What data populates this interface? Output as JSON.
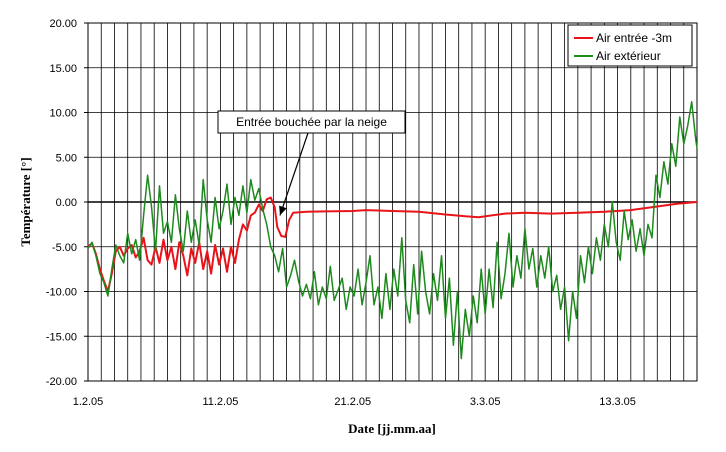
{
  "chart_data": {
    "type": "line",
    "xlabel": "Date [jj.mm.aa]",
    "ylabel": "Température [°]",
    "x_unit": "day index from 1.2.05",
    "x_range_days": [
      0,
      46
    ],
    "ylim": [
      -20,
      20
    ],
    "y_ticks": [
      "20.00",
      "15.00",
      "10.00",
      "5.00",
      "0.00",
      "-5.00",
      "-10.00",
      "-15.00",
      "-20.00"
    ],
    "x_tick_labels": [
      {
        "day": 0,
        "label": "1.2.05"
      },
      {
        "day": 10,
        "label": "11.2.05"
      },
      {
        "day": 20,
        "label": "21.2.05"
      },
      {
        "day": 30,
        "label": "3.3.05"
      },
      {
        "day": 40,
        "label": "13.3.05"
      }
    ],
    "grid": true,
    "legend_position": "top-right",
    "series": [
      {
        "name": "Air entrée -3m",
        "color": "#e8141a",
        "points": [
          [
            0,
            -5
          ],
          [
            0.3,
            -4.6
          ],
          [
            0.6,
            -5.8
          ],
          [
            0.9,
            -7.5
          ],
          [
            1.2,
            -8.8
          ],
          [
            1.5,
            -10
          ],
          [
            1.8,
            -8
          ],
          [
            2.1,
            -5.5
          ],
          [
            2.4,
            -5
          ],
          [
            2.7,
            -6
          ],
          [
            3.0,
            -5.2
          ],
          [
            3.3,
            -4.8
          ],
          [
            3.6,
            -6.2
          ],
          [
            3.9,
            -5.5
          ],
          [
            4.2,
            -4
          ],
          [
            4.5,
            -6.5
          ],
          [
            4.8,
            -7
          ],
          [
            5.1,
            -5
          ],
          [
            5.4,
            -6.8
          ],
          [
            5.7,
            -4.2
          ],
          [
            6.0,
            -6.5
          ],
          [
            6.3,
            -5
          ],
          [
            6.6,
            -7.5
          ],
          [
            6.9,
            -4.5
          ],
          [
            7.2,
            -6
          ],
          [
            7.5,
            -8.2
          ],
          [
            7.8,
            -5.2
          ],
          [
            8.1,
            -6.8
          ],
          [
            8.4,
            -4.5
          ],
          [
            8.7,
            -7.5
          ],
          [
            9.0,
            -5.5
          ],
          [
            9.3,
            -8
          ],
          [
            9.6,
            -4.8
          ],
          [
            9.9,
            -7
          ],
          [
            10.2,
            -5.2
          ],
          [
            10.5,
            -7.8
          ],
          [
            10.8,
            -5
          ],
          [
            11.1,
            -6.8
          ],
          [
            11.4,
            -4.2
          ],
          [
            11.7,
            -2.5
          ],
          [
            12.0,
            -3.2
          ],
          [
            12.3,
            -1.5
          ],
          [
            12.6,
            -1.2
          ],
          [
            12.9,
            -0.3
          ],
          [
            13.2,
            -1
          ],
          [
            13.5,
            0.3
          ],
          [
            13.8,
            0.5
          ],
          [
            14.1,
            -0.6
          ],
          [
            14.3,
            -2.8
          ],
          [
            14.6,
            -3.8
          ],
          [
            14.9,
            -3.9
          ],
          [
            15.2,
            -2
          ],
          [
            15.5,
            -1.2
          ],
          [
            16.5,
            -1.1
          ],
          [
            18,
            -1.05
          ],
          [
            20,
            -1.0
          ],
          [
            21,
            -0.9
          ],
          [
            23,
            -1.0
          ],
          [
            25,
            -1.1
          ],
          [
            27,
            -1.4
          ],
          [
            28.5,
            -1.6
          ],
          [
            29.5,
            -1.7
          ],
          [
            30.5,
            -1.5
          ],
          [
            31.5,
            -1.3
          ],
          [
            33,
            -1.2
          ],
          [
            35,
            -1.3
          ],
          [
            37,
            -1.2
          ],
          [
            39,
            -1.1
          ],
          [
            41,
            -0.9
          ],
          [
            43,
            -0.5
          ],
          [
            44.5,
            -0.2
          ],
          [
            46,
            0
          ]
        ]
      },
      {
        "name": "Air extérieur",
        "color": "#1e8a1e",
        "points": [
          [
            0,
            -5.2
          ],
          [
            0.3,
            -4.5
          ],
          [
            0.6,
            -6
          ],
          [
            0.9,
            -8
          ],
          [
            1.2,
            -9
          ],
          [
            1.5,
            -10.5
          ],
          [
            1.8,
            -7.5
          ],
          [
            2.1,
            -4.8
          ],
          [
            2.4,
            -6
          ],
          [
            2.7,
            -6.8
          ],
          [
            3.0,
            -3.5
          ],
          [
            3.3,
            -5.8
          ],
          [
            3.6,
            -4.2
          ],
          [
            3.9,
            -6.5
          ],
          [
            4.2,
            -1.5
          ],
          [
            4.5,
            3
          ],
          [
            4.8,
            -0.5
          ],
          [
            5.1,
            -5.5
          ],
          [
            5.4,
            1.8
          ],
          [
            5.7,
            -3.5
          ],
          [
            6.0,
            -2.2
          ],
          [
            6.3,
            -4.5
          ],
          [
            6.6,
            0.8
          ],
          [
            6.9,
            -3
          ],
          [
            7.2,
            -5.5
          ],
          [
            7.5,
            -1
          ],
          [
            7.8,
            -4.5
          ],
          [
            8.1,
            -2
          ],
          [
            8.4,
            -4.8
          ],
          [
            8.7,
            2.5
          ],
          [
            9.0,
            -2
          ],
          [
            9.3,
            -4.5
          ],
          [
            9.6,
            0.5
          ],
          [
            9.9,
            -3
          ],
          [
            10.2,
            -1
          ],
          [
            10.5,
            2
          ],
          [
            10.8,
            -2.5
          ],
          [
            11.1,
            0.5
          ],
          [
            11.4,
            -1.5
          ],
          [
            11.7,
            1.8
          ],
          [
            12.0,
            -1.2
          ],
          [
            12.3,
            2.5
          ],
          [
            12.6,
            0.2
          ],
          [
            12.9,
            1.5
          ],
          [
            13.2,
            -0.8
          ],
          [
            13.5,
            -2.5
          ],
          [
            13.8,
            -5
          ],
          [
            14.1,
            -6
          ],
          [
            14.4,
            -7.8
          ],
          [
            14.7,
            -5.2
          ],
          [
            15.0,
            -9.5
          ],
          [
            15.3,
            -8.2
          ],
          [
            15.6,
            -6.5
          ],
          [
            15.9,
            -8.8
          ],
          [
            16.2,
            -10.5
          ],
          [
            16.5,
            -9.2
          ],
          [
            16.8,
            -10.8
          ],
          [
            17.1,
            -7.8
          ],
          [
            17.4,
            -11.5
          ],
          [
            17.7,
            -9.5
          ],
          [
            18.0,
            -10.8
          ],
          [
            18.3,
            -7.2
          ],
          [
            18.6,
            -11
          ],
          [
            18.9,
            -9.8
          ],
          [
            19.2,
            -8.5
          ],
          [
            19.5,
            -12
          ],
          [
            19.8,
            -9.5
          ],
          [
            20.1,
            -10.5
          ],
          [
            20.4,
            -7.5
          ],
          [
            20.7,
            -11.5
          ],
          [
            21.0,
            -9
          ],
          [
            21.3,
            -6
          ],
          [
            21.6,
            -11.5
          ],
          [
            21.9,
            -9.5
          ],
          [
            22.2,
            -13
          ],
          [
            22.5,
            -8
          ],
          [
            22.8,
            -12
          ],
          [
            23.1,
            -7.5
          ],
          [
            23.4,
            -10.5
          ],
          [
            23.7,
            -4
          ],
          [
            24.0,
            -11
          ],
          [
            24.3,
            -13.5
          ],
          [
            24.6,
            -7
          ],
          [
            24.9,
            -12.5
          ],
          [
            25.2,
            -5.5
          ],
          [
            25.5,
            -10
          ],
          [
            25.8,
            -12.5
          ],
          [
            26.1,
            -8
          ],
          [
            26.4,
            -11
          ],
          [
            26.7,
            -6
          ],
          [
            27.0,
            -13
          ],
          [
            27.3,
            -8.5
          ],
          [
            27.6,
            -16
          ],
          [
            27.9,
            -10
          ],
          [
            28.2,
            -17.5
          ],
          [
            28.5,
            -12
          ],
          [
            28.8,
            -15
          ],
          [
            29.1,
            -10.5
          ],
          [
            29.4,
            -13.5
          ],
          [
            29.7,
            -7.5
          ],
          [
            30.0,
            -12.5
          ],
          [
            30.3,
            -7.5
          ],
          [
            30.6,
            -11.8
          ],
          [
            30.9,
            -4.5
          ],
          [
            31.2,
            -10.8
          ],
          [
            31.5,
            -8
          ],
          [
            31.8,
            -3.5
          ],
          [
            32.1,
            -9.5
          ],
          [
            32.4,
            -6
          ],
          [
            32.7,
            -8.5
          ],
          [
            33.0,
            -3
          ],
          [
            33.3,
            -7.5
          ],
          [
            33.6,
            -5.2
          ],
          [
            33.9,
            -9.5
          ],
          [
            34.2,
            -6
          ],
          [
            34.5,
            -8.5
          ],
          [
            34.8,
            -5
          ],
          [
            35.1,
            -10
          ],
          [
            35.4,
            -8.2
          ],
          [
            35.7,
            -12
          ],
          [
            36.0,
            -9.5
          ],
          [
            36.3,
            -15.5
          ],
          [
            36.6,
            -10
          ],
          [
            36.9,
            -13
          ],
          [
            37.2,
            -6
          ],
          [
            37.5,
            -9
          ],
          [
            37.8,
            -5
          ],
          [
            38.1,
            -8
          ],
          [
            38.4,
            -4
          ],
          [
            38.7,
            -6.5
          ],
          [
            39.0,
            -2.5
          ],
          [
            39.3,
            -5
          ],
          [
            39.6,
            0
          ],
          [
            39.9,
            -4.5
          ],
          [
            40.2,
            -6.5
          ],
          [
            40.5,
            -1
          ],
          [
            40.8,
            -4.2
          ],
          [
            41.1,
            -2
          ],
          [
            41.4,
            -5.5
          ],
          [
            41.7,
            -3
          ],
          [
            42.0,
            -6
          ],
          [
            42.3,
            -2.5
          ],
          [
            42.6,
            -4
          ],
          [
            42.9,
            3
          ],
          [
            43.2,
            0.5
          ],
          [
            43.5,
            4.5
          ],
          [
            43.8,
            2
          ],
          [
            44.1,
            6.5
          ],
          [
            44.4,
            4
          ],
          [
            44.7,
            9.5
          ],
          [
            45.0,
            6.5
          ],
          [
            45.3,
            8.5
          ],
          [
            45.6,
            11.2
          ],
          [
            45.9,
            7
          ],
          [
            46,
            6
          ]
        ]
      }
    ],
    "annotation": {
      "text": "Entrée bouchée par la neige",
      "target_day": 14.5,
      "target_temp": -1.5
    }
  }
}
